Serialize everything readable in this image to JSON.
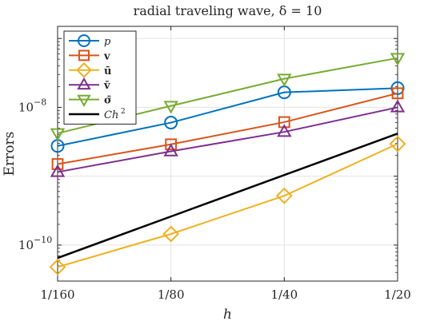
{
  "chart_data": {
    "type": "line",
    "title": "radial traveling wave, δ = 10",
    "xlabel": "h",
    "ylabel": "Errors",
    "x_scale": "log2",
    "y_scale": "log",
    "categories": [
      "1/160",
      "1/80",
      "1/40",
      "1/20"
    ],
    "x": [
      0.00625,
      0.0125,
      0.025,
      0.05
    ],
    "xlim": [
      0.00625,
      0.05
    ],
    "ylim": [
      3e-11,
      1.5e-07
    ],
    "yticks": [
      1e-10,
      1e-08
    ],
    "ytick_labels": [
      {
        "base": "10",
        "exp": "−10"
      },
      {
        "base": "10",
        "exp": "−8"
      }
    ],
    "grid": true,
    "legend_position": "top-left",
    "series": [
      {
        "name": "p",
        "style": "italic",
        "color": "#0072BD",
        "marker": "circle",
        "values": [
          2.75e-09,
          6e-09,
          1.65e-08,
          1.9e-08
        ]
      },
      {
        "name": "v",
        "style": "bold",
        "color": "#D95319",
        "marker": "square",
        "values": [
          1.5e-09,
          2.9e-09,
          6.1e-09,
          1.6e-08
        ]
      },
      {
        "name": "ū",
        "style": "bold",
        "color": "#EDB120",
        "marker": "diamond",
        "values": [
          4.8e-11,
          1.45e-10,
          5.2e-10,
          2.95e-09
        ]
      },
      {
        "name": "v̄",
        "style": "bold",
        "color": "#7E2F8E",
        "marker": "triangle-up",
        "values": [
          1.15e-09,
          2.3e-09,
          4.4e-09,
          1e-08
        ]
      },
      {
        "name": "σ̄",
        "style": "bold",
        "color": "#77AC30",
        "marker": "triangle-down",
        "values": [
          4.2e-09,
          1.05e-08,
          2.6e-08,
          5.2e-08
        ]
      },
      {
        "name": "Ch",
        "sup": "2",
        "style": "italic",
        "color": "#000000",
        "marker": "none",
        "values": [
          6.5e-11,
          2.6e-10,
          1.04e-09,
          4.16e-09
        ]
      }
    ]
  }
}
